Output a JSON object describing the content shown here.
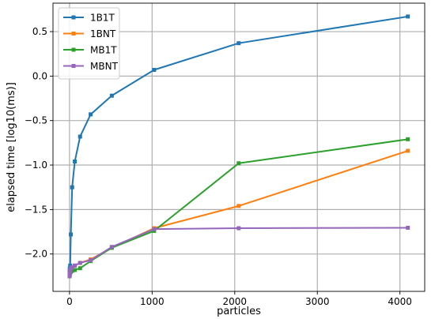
{
  "chart_data": {
    "type": "line",
    "title": "",
    "xlabel": "particles",
    "ylabel": "elapsed time [log10(ms)]",
    "xlim": [
      -200,
      4300
    ],
    "ylim": [
      -2.42,
      0.82
    ],
    "x_ticks": [
      0,
      1000,
      2000,
      3000,
      4000
    ],
    "y_ticks": [
      -2.0,
      -1.5,
      -1.0,
      -0.5,
      0.0,
      0.5
    ],
    "x_tick_labels": [
      "0",
      "1000",
      "2000",
      "3000",
      "4000"
    ],
    "y_tick_labels": [
      "−2.0",
      "−1.5",
      "−1.0",
      "−0.5",
      "0.0",
      "0.5"
    ],
    "grid": true,
    "legend_position": "top-left",
    "series": [
      {
        "name": "1B1T",
        "color": "#1f77b4",
        "x": [
          1,
          2,
          4,
          8,
          16,
          32,
          64,
          128,
          256,
          512,
          1024,
          2048,
          4096
        ],
        "y": [
          -2.21,
          -2.18,
          -2.16,
          -2.13,
          -1.78,
          -1.25,
          -0.96,
          -0.68,
          -0.43,
          -0.22,
          0.07,
          0.37,
          0.67
        ]
      },
      {
        "name": "1BNT",
        "color": "#ff7f0e",
        "x": [
          1,
          2,
          4,
          8,
          16,
          32,
          64,
          128,
          256,
          512,
          1024,
          2048,
          4096
        ],
        "y": [
          -2.25,
          -2.24,
          -2.22,
          -2.2,
          -2.18,
          -2.15,
          -2.13,
          -2.1,
          -2.06,
          -1.93,
          -1.71,
          -1.46,
          -0.84
        ]
      },
      {
        "name": "MB1T",
        "color": "#2ca02c",
        "x": [
          1,
          2,
          4,
          8,
          16,
          32,
          64,
          128,
          256,
          512,
          1024,
          2048,
          4096
        ],
        "y": [
          -2.25,
          -2.24,
          -2.22,
          -2.21,
          -2.2,
          -2.19,
          -2.18,
          -2.16,
          -2.08,
          -1.93,
          -1.74,
          -0.98,
          -0.71
        ]
      },
      {
        "name": "MBNT",
        "color": "#9467bd",
        "x": [
          1,
          2,
          4,
          8,
          16,
          32,
          64,
          128,
          256,
          512,
          1024,
          2048,
          4096
        ],
        "y": [
          -2.25,
          -2.24,
          -2.22,
          -2.18,
          -2.16,
          -2.15,
          -2.13,
          -2.1,
          -2.07,
          -1.92,
          -1.72,
          -1.71,
          -1.705
        ]
      }
    ]
  }
}
